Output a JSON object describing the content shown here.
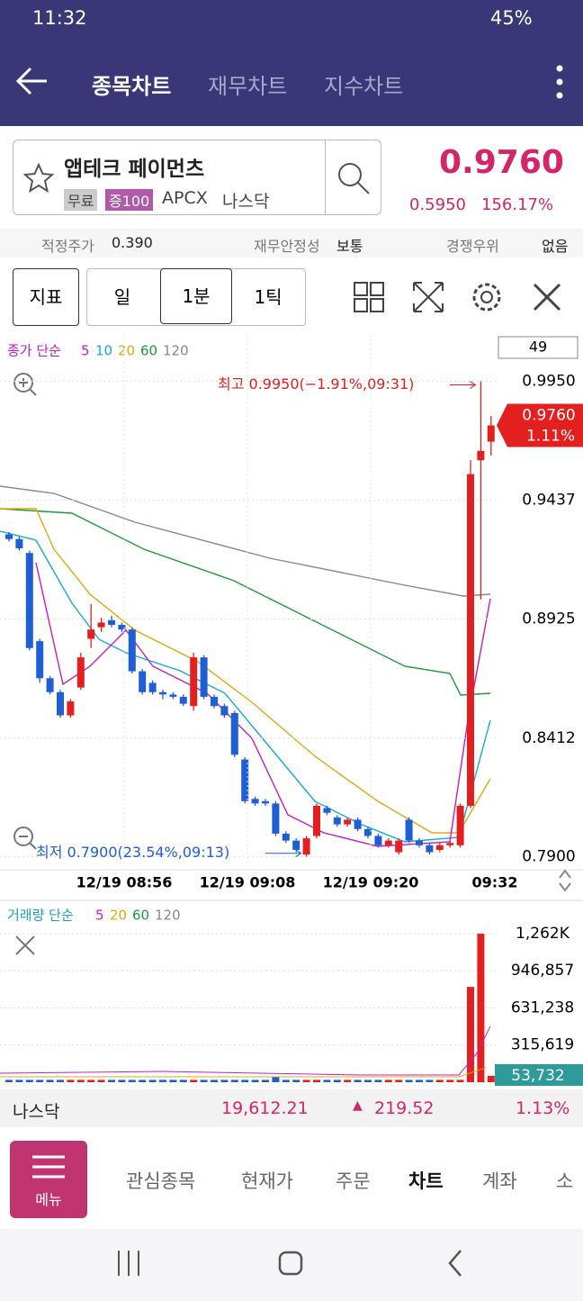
{
  "status_bar": {
    "time": "11:32",
    "battery": "45%"
  },
  "header": {
    "tabs": [
      "종목차트",
      "재무차트",
      "지수차트"
    ]
  },
  "stock": {
    "name": "앱테크 페이먼츠",
    "badges": [
      "무료",
      "증100"
    ],
    "ticker": "APCX",
    "market": "나스닥",
    "price": "0.9760",
    "change": "0.5950",
    "change_pct": "156.17%"
  },
  "info_row": {
    "fair_label": "적정주가",
    "fair_value": "0.390",
    "fin_label": "재무안정성",
    "fin_value": "보통",
    "comp_label": "경쟁우위",
    "comp_value": "없음"
  },
  "toolbar": {
    "indicator": "지표",
    "periods": [
      "일",
      "1분",
      "1틱"
    ]
  },
  "chart_data": [
    {
      "type": "candlestick",
      "legend_title": "종가 단순",
      "ma": [
        {
          "name": "5",
          "color": "#c21fc2"
        },
        {
          "name": "10",
          "color": "#17a8d8"
        },
        {
          "name": "20",
          "color": "#e0a810"
        },
        {
          "name": "60",
          "color": "#1e9a3c"
        },
        {
          "name": "120",
          "color": "#888888"
        }
      ],
      "count_label": "49",
      "up_color": "#e3201f",
      "down_color": "#1f5fd6",
      "open": [
        0.929,
        0.927,
        0.921,
        0.883,
        0.867,
        0.861,
        0.851,
        0.863,
        0.884,
        0.889,
        0.892,
        0.89,
        0.888,
        0.87,
        0.865,
        0.861,
        0.86,
        0.859,
        0.855,
        0.876,
        0.859,
        0.855,
        0.852,
        0.832,
        0.815,
        0.814,
        0.813,
        0.8,
        0.797,
        0.791,
        0.799,
        0.811,
        0.807,
        0.804,
        0.806,
        0.802,
        0.799,
        0.795,
        0.792,
        0.806,
        0.797,
        0.795,
        0.793,
        0.795,
        0.795,
        0.812,
        0.961,
        0.969
      ],
      "close": [
        0.927,
        0.923,
        0.88,
        0.867,
        0.861,
        0.851,
        0.857,
        0.876,
        0.888,
        0.891,
        0.89,
        0.888,
        0.87,
        0.861,
        0.861,
        0.86,
        0.859,
        0.856,
        0.876,
        0.859,
        0.855,
        0.851,
        0.834,
        0.814,
        0.813,
        0.813,
        0.8,
        0.797,
        0.793,
        0.798,
        0.812,
        0.809,
        0.804,
        0.806,
        0.802,
        0.799,
        0.795,
        0.797,
        0.797,
        0.797,
        0.795,
        0.792,
        0.795,
        0.796,
        0.812,
        0.955,
        0.965,
        0.976
      ],
      "high": [
        0.93,
        0.928,
        0.922,
        0.884,
        0.868,
        0.862,
        0.858,
        0.878,
        0.899,
        0.893,
        0.894,
        0.891,
        0.889,
        0.871,
        0.866,
        0.862,
        0.861,
        0.86,
        0.878,
        0.877,
        0.86,
        0.856,
        0.853,
        0.833,
        0.816,
        0.815,
        0.814,
        0.801,
        0.798,
        0.799,
        0.813,
        0.812,
        0.808,
        0.807,
        0.807,
        0.803,
        0.8,
        0.798,
        0.798,
        0.807,
        0.798,
        0.796,
        0.796,
        0.797,
        0.813,
        0.961,
        0.995,
        0.98
      ],
      "low": [
        0.926,
        0.922,
        0.879,
        0.865,
        0.86,
        0.85,
        0.85,
        0.862,
        0.88,
        0.887,
        0.889,
        0.887,
        0.869,
        0.86,
        0.86,
        0.858,
        0.858,
        0.855,
        0.853,
        0.858,
        0.854,
        0.85,
        0.833,
        0.813,
        0.812,
        0.812,
        0.799,
        0.796,
        0.792,
        0.79,
        0.798,
        0.808,
        0.803,
        0.803,
        0.801,
        0.798,
        0.794,
        0.794,
        0.791,
        0.796,
        0.794,
        0.791,
        0.792,
        0.794,
        0.794,
        0.811,
        0.901,
        0.963
      ],
      "ylim": [
        0.786,
        1.015
      ],
      "yticks": [
        {
          "value": 0.995,
          "label": "0.9950"
        },
        0.9437,
        0.8925,
        0.8412,
        {
          "value": 0.79,
          "label": "0.7900"
        }
      ],
      "last_label": "0.9760",
      "last_pct": "1.11%",
      "max_label": "최고 0.9950(−1.91%,09:31)",
      "min_label": "최저 0.7900(23.54%,09:13)",
      "xtick_labels": [
        "12/19 08:56",
        "12/19 09:08",
        "12/19 09:20",
        "09:32"
      ]
    },
    {
      "type": "bar",
      "legend_title": "거래량 단순",
      "ma": [
        {
          "name": "5",
          "color": "#c21fc2"
        },
        {
          "name": "20",
          "color": "#e0a810"
        },
        {
          "name": "60",
          "color": "#1e9a3c"
        },
        {
          "name": "120",
          "color": "#888888"
        }
      ],
      "values": [
        20000,
        20000,
        20000,
        20000,
        20000,
        20000,
        20000,
        20000,
        20000,
        20000,
        20000,
        20000,
        20000,
        20000,
        20000,
        20000,
        20000,
        20000,
        20000,
        20000,
        20000,
        20000,
        20000,
        20000,
        20000,
        20000,
        45000,
        20000,
        20000,
        20000,
        20000,
        20000,
        20000,
        20000,
        20000,
        20000,
        20000,
        20000,
        20000,
        20000,
        20000,
        20000,
        20000,
        20000,
        20000,
        810000,
        1262000,
        53732
      ],
      "value_labels_last": "53,732",
      "ylim": [
        0,
        1469000
      ],
      "yticks": [
        {
          "value": 1262000,
          "label": "1,262K"
        },
        {
          "value": 946857,
          "label": "946,857"
        },
        {
          "value": 631238,
          "label": "631,238"
        },
        {
          "value": 315619,
          "label": "315,619"
        }
      ]
    }
  ],
  "index_bar": {
    "name": "나스닥",
    "value": "19,612.21",
    "change": "219.52",
    "change_pct": "1.13%"
  },
  "bottom_nav": {
    "menu": "메뉴",
    "items": [
      "관심종목",
      "현재가",
      "주문",
      "차트",
      "계좌",
      "소"
    ]
  }
}
